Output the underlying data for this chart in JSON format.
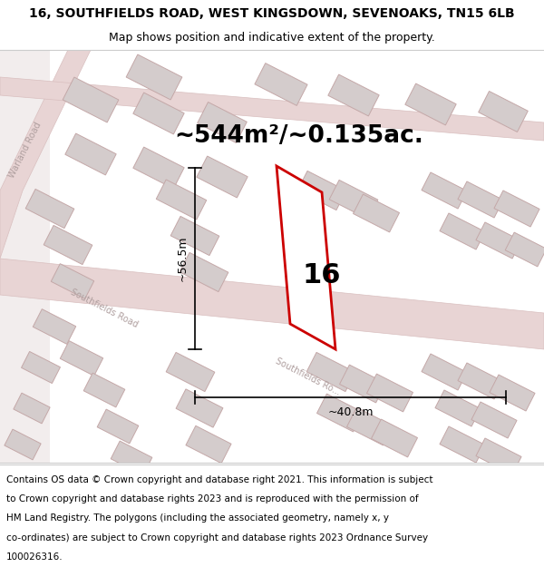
{
  "title_line1": "16, SOUTHFIELDS ROAD, WEST KINGSDOWN, SEVENOAKS, TN15 6LB",
  "title_line2": "Map shows position and indicative extent of the property.",
  "area_text": "~544m²/~0.135ac.",
  "dim_vertical": "~56.5m",
  "dim_horizontal": "~40.8m",
  "label_number": "16",
  "road_label_warland": "Warland Road",
  "road_label_southfields": "Southfields Road",
  "footer_text": "Contains OS data © Crown copyright and database right 2021. This information is subject to Crown copyright and database rights 2023 and is reproduced with the permission of HM Land Registry. The polygons (including the associated geometry, namely x, y co-ordinates) are subject to Crown copyright and database rights 2023 Ordnance Survey 100026316.",
  "map_bg": "#f2eded",
  "plot_fill": "#ffffff",
  "plot_edge": "#cc0000",
  "bfill": "#d4cccc",
  "bedge": "#c4a8a8",
  "road_fill": "#e8d4d4",
  "road_edge": "#d9bfbf",
  "road_label_color": "#b0a0a0",
  "title_fontsize": 10,
  "subtitle_fontsize": 9,
  "area_fontsize": 19,
  "dim_fontsize": 9,
  "label_fontsize": 22,
  "footer_fontsize": 7.5
}
